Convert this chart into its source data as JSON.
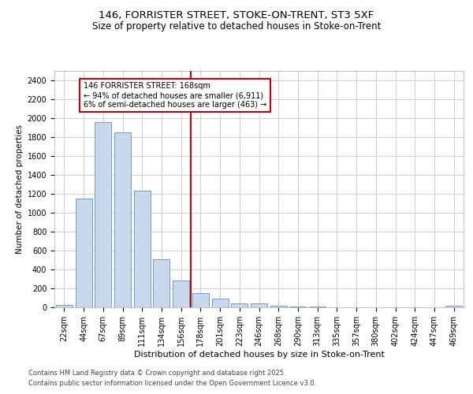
{
  "title_line1": "146, FORRISTER STREET, STOKE-ON-TRENT, ST3 5XF",
  "title_line2": "Size of property relative to detached houses in Stoke-on-Trent",
  "xlabel": "Distribution of detached houses by size in Stoke-on-Trent",
  "ylabel": "Number of detached properties",
  "annotation_title": "146 FORRISTER STREET: 168sqm",
  "annotation_line2": "← 94% of detached houses are smaller (6,911)",
  "annotation_line3": "6% of semi-detached houses are larger (463) →",
  "bar_labels": [
    "22sqm",
    "44sqm",
    "67sqm",
    "89sqm",
    "111sqm",
    "134sqm",
    "156sqm",
    "178sqm",
    "201sqm",
    "223sqm",
    "246sqm",
    "268sqm",
    "290sqm",
    "313sqm",
    "335sqm",
    "357sqm",
    "380sqm",
    "402sqm",
    "424sqm",
    "447sqm",
    "469sqm"
  ],
  "bar_values": [
    25,
    1150,
    1960,
    1850,
    1230,
    510,
    280,
    150,
    90,
    45,
    40,
    18,
    12,
    8,
    4,
    3,
    2,
    2,
    1,
    1,
    15
  ],
  "bar_color": "#c8d8ed",
  "bar_edge_color": "#6090c0",
  "vline_color": "#cc0000",
  "vline_position": 7,
  "ylim": [
    0,
    2500
  ],
  "yticks": [
    0,
    200,
    400,
    600,
    800,
    1000,
    1200,
    1400,
    1600,
    1800,
    2000,
    2200,
    2400
  ],
  "background_color": "#ffffff",
  "plot_background": "#ffffff",
  "grid_color": "#c8d0e0",
  "annotation_box_edge": "#cc0000",
  "footer_line1": "Contains HM Land Registry data © Crown copyright and database right 2025.",
  "footer_line2": "Contains public sector information licensed under the Open Government Licence v3.0.",
  "title_fontsize": 9.5,
  "subtitle_fontsize": 8.5,
  "annotation_fontsize": 7.0,
  "footer_fontsize": 6.0,
  "axis_label_fontsize": 8.0,
  "tick_fontsize": 7.0,
  "ylabel_fontsize": 7.5
}
